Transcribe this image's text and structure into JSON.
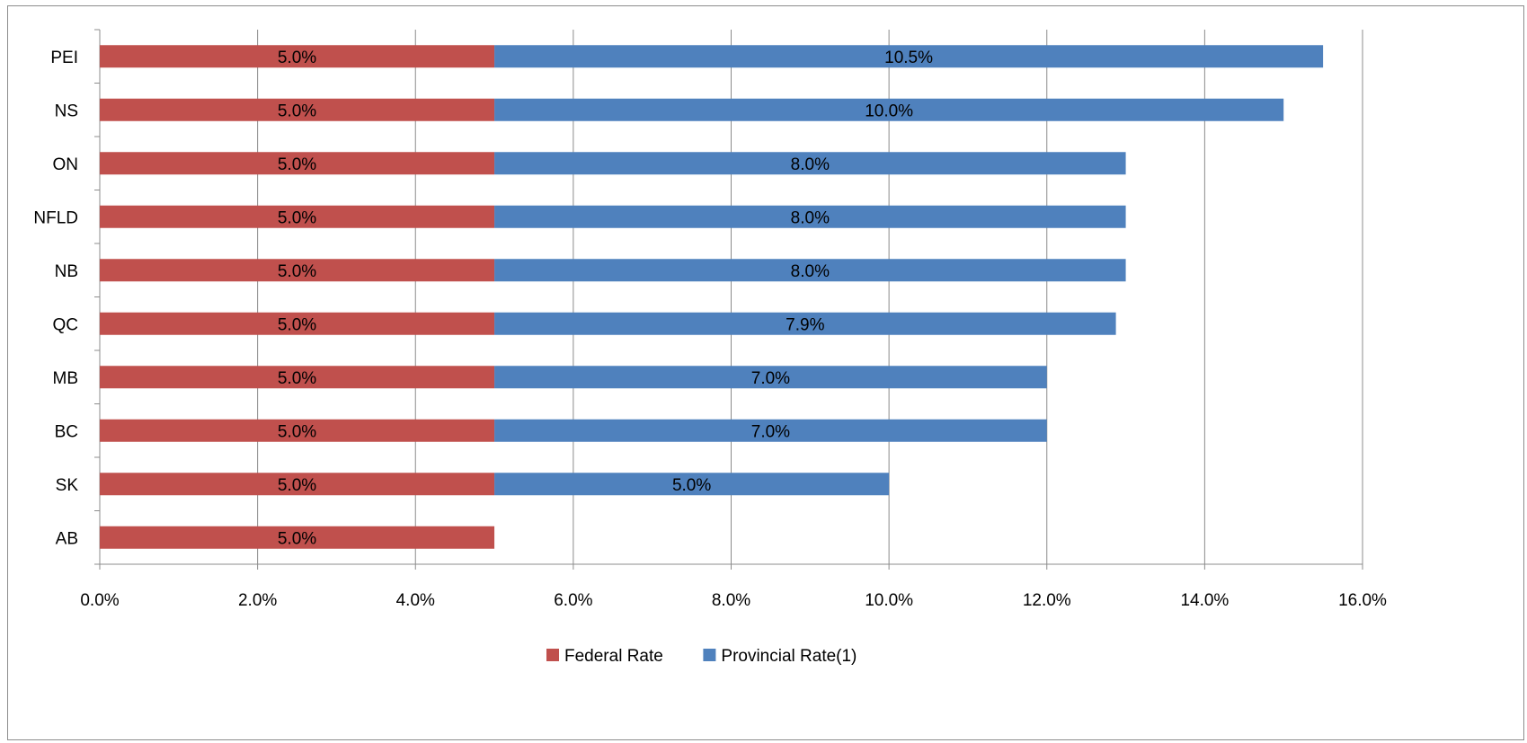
{
  "chart_data": {
    "type": "bar",
    "orientation": "horizontal",
    "stacked": true,
    "categories": [
      "PEI",
      "NS",
      "ON",
      "NFLD",
      "NB",
      "QC",
      "MB",
      "BC",
      "SK",
      "AB"
    ],
    "series": [
      {
        "name": "Federal Rate",
        "color": "#C0504D",
        "values": [
          5.0,
          5.0,
          5.0,
          5.0,
          5.0,
          5.0,
          5.0,
          5.0,
          5.0,
          5.0
        ],
        "labels": [
          "5.0%",
          "5.0%",
          "5.0%",
          "5.0%",
          "5.0%",
          "5.0%",
          "5.0%",
          "5.0%",
          "5.0%",
          "5.0%"
        ]
      },
      {
        "name": "Provincial Rate(1)",
        "color": "#4F81BD",
        "values": [
          10.5,
          10.0,
          8.0,
          8.0,
          8.0,
          7.875,
          7.0,
          7.0,
          5.0,
          null
        ],
        "labels": [
          "10.5%",
          "10.0%",
          "8.0%",
          "8.0%",
          "8.0%",
          "7.9%",
          "7.0%",
          "7.0%",
          "5.0%",
          null
        ]
      }
    ],
    "xlim": [
      0,
      16
    ],
    "xticks": [
      0,
      2,
      4,
      6,
      8,
      10,
      12,
      14,
      16
    ],
    "xtick_labels": [
      "0.0%",
      "2.0%",
      "4.0%",
      "6.0%",
      "8.0%",
      "10.0%",
      "12.0%",
      "14.0%",
      "16.0%"
    ],
    "grid": "vertical",
    "legend_position": "bottom",
    "title": "",
    "xlabel": "",
    "ylabel": ""
  }
}
